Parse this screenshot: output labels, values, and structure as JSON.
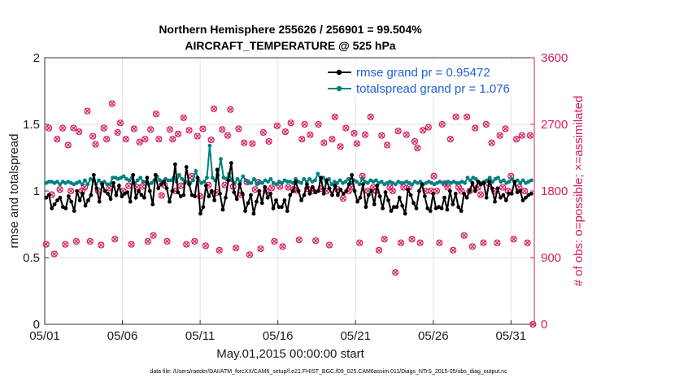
{
  "chart_data": {
    "type": "line",
    "title_line1": "Northern Hemisphere 255626 / 256901 = 99.504%",
    "title_line2": "AIRCRAFT_TEMPERATURE @ 525 hPa",
    "xlabel": "May.01,2015 00:00:00 start",
    "ylabel_left": "rmse and totalspread",
    "ylabel_right": "# of obs: o=possible; ×=assimilated",
    "footnote": "data file: /Users/raeder/DAI/ATM_forcXX/CAM6_setup/f.e21.FHIST_BGC.f09_025.CAM6assim.011/Diags_NTrS_2015-05/obs_diag_output.nc",
    "xlim": [
      0,
      31.5
    ],
    "ylim_left": [
      0,
      2
    ],
    "ylim_right": [
      0,
      3600
    ],
    "xticks": [
      0,
      5,
      10,
      15,
      20,
      25,
      30
    ],
    "xtick_labels": [
      "05/01",
      "05/06",
      "05/11",
      "05/16",
      "05/21",
      "05/26",
      "05/31"
    ],
    "yticks_left": [
      0,
      0.5,
      1,
      1.5,
      2
    ],
    "ytick_labels_left": [
      "0",
      "0.5",
      "1",
      "1.5",
      "2"
    ],
    "yticks_right": [
      0,
      900,
      1800,
      2700,
      3600
    ],
    "ytick_labels_right": [
      "0",
      "900",
      "1800",
      "2700",
      "3600"
    ],
    "grid": true,
    "legend_position": "top-right",
    "colors": {
      "rmse": "#000000",
      "spread": "#008080",
      "obs": "#d81b60",
      "legend_text": "#1f5fd6"
    },
    "series": [
      {
        "name": "rmse grand pr = 0.95472",
        "axis": "left",
        "values": [
          0.95,
          0.97,
          0.87,
          0.9,
          0.93,
          0.95,
          0.88,
          0.87,
          0.96,
          0.92,
          0.85,
          1.0,
          0.93,
          0.98,
          0.89,
          0.93,
          0.97,
          1.12,
          1.02,
          0.92,
          1.05,
          1.0,
          0.98,
          0.94,
          1.06,
          0.97,
          1.04,
          0.96,
          0.98,
          0.99,
          0.92,
          1.12,
          0.95,
          1.0,
          0.97,
          0.95,
          1.1,
          1.0,
          0.9,
          1.12,
          1.02,
          1.05,
          1.07,
          1.02,
          0.92,
          1.0,
          1.2,
          0.99,
          0.96,
          0.97,
          1.18,
          1.05,
          0.97,
          0.96,
          1.1,
          0.83,
          0.88,
          1.04,
          0.96,
          1.0,
          0.93,
          1.16,
          0.98,
          0.86,
          0.95,
          1.08,
          1.21,
          0.99,
          0.94,
          1.05,
          0.98,
          0.85,
          0.91,
          0.97,
          0.83,
          0.92,
          1.0,
          0.91,
          1.03,
          0.95,
          0.98,
          0.87,
          0.93,
          0.88,
          0.88,
          0.93,
          0.85,
          0.97,
          1.0,
          1.07,
          1.0,
          0.93,
          0.97,
          1.05,
          0.98,
          1.03,
          0.99,
          1.0,
          1.1,
          0.98,
          1.08,
          1.02,
          0.97,
          1.04,
          0.97,
          1.01,
          0.98,
          1.0,
          1.05,
          1.12,
          1.0,
          0.92,
          0.95,
          1.05,
          0.88,
          0.97,
          1.0,
          0.9,
          1.04,
          0.96,
          0.87,
          0.99,
          0.93,
          0.85,
          0.88,
          0.88,
          0.95,
          0.89,
          0.83,
          1.01,
          0.97,
          0.91,
          0.87,
          1.0,
          1.05,
          0.96,
          0.87,
          0.85,
          0.98,
          0.87,
          0.88,
          0.87,
          0.95,
          0.86,
          1.0,
          0.9,
          0.98,
          0.88,
          0.85,
          0.98,
          0.95,
          1.0,
          1.06,
          1.0,
          1.07,
          1.05,
          1.06,
          0.95,
          1.07,
          1.02,
          0.92,
          1.02,
          0.95,
          0.97,
          0.93,
          0.98,
          0.98,
          1.07,
          0.99,
          1.0,
          0.93,
          0.95,
          0.97,
          0.98
        ]
      },
      {
        "name": "totalspread grand pr = 1.076",
        "axis": "left",
        "values": [
          1.06,
          1.07,
          1.07,
          1.06,
          1.07,
          1.05,
          1.07,
          1.06,
          1.07,
          1.06,
          1.05,
          1.06,
          1.07,
          1.05,
          1.08,
          1.05,
          1.09,
          1.08,
          1.05,
          1.08,
          1.06,
          1.07,
          1.05,
          1.05,
          1.1,
          1.1,
          1.09,
          1.1,
          1.11,
          1.09,
          1.08,
          1.1,
          1.06,
          1.08,
          1.1,
          1.07,
          1.07,
          1.05,
          1.06,
          1.08,
          1.11,
          1.08,
          1.07,
          1.09,
          1.08,
          1.08,
          1.1,
          1.07,
          1.12,
          1.09,
          1.06,
          1.07,
          1.06,
          1.08,
          1.15,
          1.08,
          1.06,
          1.07,
          1.1,
          1.34,
          1.1,
          1.08,
          1.12,
          1.24,
          1.1,
          1.09,
          1.13,
          1.08,
          1.06,
          1.09,
          1.07,
          1.11,
          1.08,
          1.06,
          1.06,
          1.09,
          1.05,
          1.07,
          1.06,
          1.08,
          1.07,
          1.09,
          1.06,
          1.05,
          1.07,
          1.06,
          1.08,
          1.07,
          1.07,
          1.06,
          1.09,
          1.07,
          1.06,
          1.09,
          1.07,
          1.09,
          1.07,
          1.08,
          1.13,
          1.08,
          1.1,
          1.07,
          1.09,
          1.05,
          1.07,
          1.06,
          1.08,
          1.06,
          1.07,
          1.09,
          1.06,
          1.08,
          1.07,
          1.05,
          1.09,
          1.07,
          1.06,
          1.08,
          1.07,
          1.08,
          1.06,
          1.07,
          1.05,
          1.06,
          1.07,
          1.06,
          1.05,
          1.07,
          1.06,
          1.06,
          1.07,
          1.06,
          1.05,
          1.07,
          1.06,
          1.07,
          1.05,
          1.06,
          1.07,
          1.06,
          1.05,
          1.06,
          1.07,
          1.06,
          1.06,
          1.07,
          1.06,
          1.07,
          1.06,
          1.06,
          1.07,
          1.06,
          1.1,
          1.08,
          1.1,
          1.09,
          1.07,
          1.06,
          1.07,
          1.08,
          1.1,
          1.07,
          1.09,
          1.1,
          1.07,
          1.08,
          1.06,
          1.07,
          1.09,
          1.06,
          1.08,
          1.06,
          1.08,
          1.06,
          1.07,
          1.08
        ]
      },
      {
        "name": "# of obs",
        "axis": "right",
        "values": [
          1080,
          2650,
          1750,
          950,
          2500,
          1820,
          2650,
          1080,
          2420,
          1800,
          2650,
          1120,
          2600,
          1800,
          1850,
          2880,
          1120,
          2540,
          2430,
          1800,
          1070,
          2650,
          2500,
          1840,
          2980,
          1150,
          2590,
          2720,
          1800,
          2500,
          1870,
          1080,
          2640,
          1850,
          2460,
          1860,
          2500,
          1120,
          2630,
          1200,
          2840,
          2500,
          1740,
          1880,
          1120,
          2630,
          2500,
          1800,
          2570,
          1870,
          2790,
          1080,
          2620,
          2000,
          1120,
          2540,
          1730,
          2640,
          1060,
          1880,
          2490,
          2910,
          1780,
          1000,
          2630,
          1880,
          2550,
          2900,
          1860,
          1030,
          2640,
          1750,
          2450,
          1920,
          940,
          2440,
          1820,
          1920,
          1020,
          2590,
          1800,
          2470,
          1840,
          1120,
          2680,
          1860,
          1050,
          2600,
          1850,
          2720,
          1820,
          1810,
          1140,
          2500,
          2700,
          1830,
          2560,
          1800,
          1130,
          2700,
          1830,
          2450,
          1800,
          1070,
          2500,
          2800,
          1820,
          2400,
          1700,
          2650,
          1800,
          1850,
          2580,
          2440,
          1100,
          2000,
          2560,
          1800,
          2800,
          1850,
          1800,
          1000,
          2550,
          1150,
          2420,
          1850,
          1800,
          700,
          2610,
          1100,
          1850,
          2560,
          1850,
          1150,
          2470,
          2380,
          1100,
          2620,
          1800,
          2660,
          1800,
          2000,
          1800,
          1100,
          2700,
          1900,
          1850,
          2500,
          1000,
          2800,
          1850,
          1800,
          1200,
          2800,
          1800,
          1050,
          2650,
          1850,
          1750,
          1100,
          2700,
          1900,
          2450,
          1800,
          1100,
          2550,
          1850,
          2640,
          1800,
          2000,
          1150,
          2500,
          1850,
          2550,
          1800,
          1100,
          2550,
          0
        ]
      }
    ]
  }
}
